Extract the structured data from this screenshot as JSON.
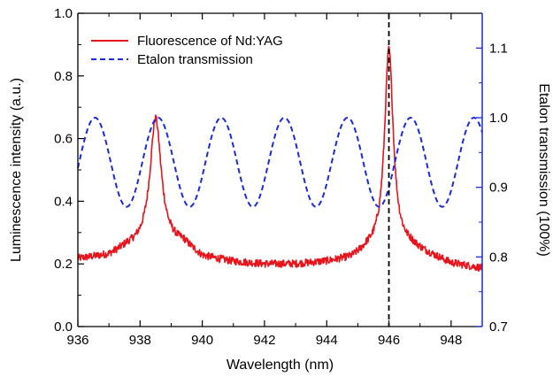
{
  "chart_data": {
    "type": "line",
    "xlabel": "Wavelength (nm)",
    "ylabel_left": "Luminescence intensity (a.u.)",
    "ylabel_right": "Etalon transmission (100%)",
    "xlim": [
      936,
      949
    ],
    "ylim_left": [
      0.0,
      1.0
    ],
    "ylim_right": [
      0.7,
      1.15
    ],
    "x_ticks": [
      "936",
      "938",
      "940",
      "942",
      "944",
      "946",
      "948"
    ],
    "y_ticks_left": [
      "0.0",
      "0.2",
      "0.4",
      "0.6",
      "0.8",
      "1.0"
    ],
    "y_ticks_right": [
      "0.7",
      "0.8",
      "0.9",
      "1.0",
      "1.1"
    ],
    "grid": false,
    "legend_position": "top-left",
    "vline_x": 946.0,
    "colors": {
      "fluorescence": "#e8141c",
      "etalon": "#1a2adc",
      "right_axis": "#1a2adc",
      "vline": "#000000"
    },
    "series": [
      {
        "name": "Fluorescence of Nd:YAG",
        "axis": "left",
        "style": "solid",
        "baseline": [
          [
            936.0,
            0.215
          ],
          [
            937.0,
            0.225
          ],
          [
            937.6,
            0.25
          ],
          [
            939.4,
            0.26
          ],
          [
            940.0,
            0.22
          ],
          [
            941.0,
            0.205
          ],
          [
            942.0,
            0.198
          ],
          [
            943.0,
            0.198
          ],
          [
            944.0,
            0.205
          ],
          [
            944.8,
            0.215
          ],
          [
            945.3,
            0.24
          ],
          [
            946.7,
            0.25
          ],
          [
            947.5,
            0.22
          ],
          [
            948.0,
            0.2
          ],
          [
            949.0,
            0.185
          ]
        ],
        "peaks": [
          {
            "center": 938.5,
            "height": 0.41,
            "width": 0.22
          },
          {
            "center": 946.0,
            "height": 0.64,
            "width": 0.17
          }
        ],
        "noise_amplitude": 0.012
      },
      {
        "name": "Etalon transmission",
        "axis": "right",
        "style": "dashed",
        "min": 0.872,
        "max": 1.0,
        "period_nm": 2.03,
        "first_max_nm": 936.55
      }
    ]
  }
}
